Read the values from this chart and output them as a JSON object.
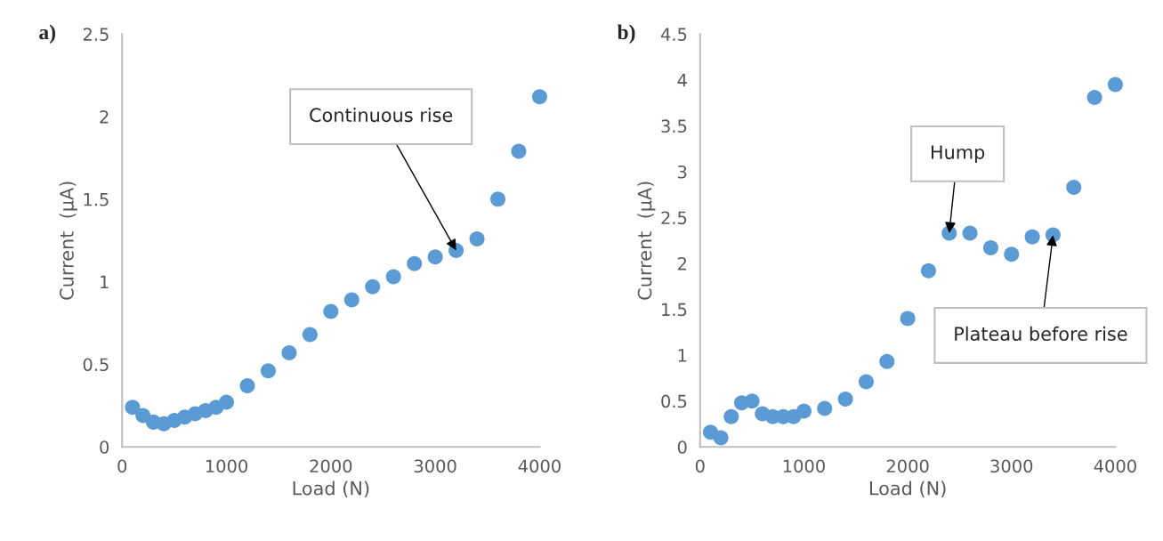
{
  "chart_data": [
    {
      "type": "scatter",
      "xlabel": "Load (N)",
      "ylabel": "Current  (µA)",
      "x": [
        100,
        200,
        300,
        400,
        500,
        600,
        700,
        800,
        900,
        1000,
        1200,
        1400,
        1600,
        1800,
        2000,
        2200,
        2400,
        2600,
        2800,
        3000,
        3200,
        3400,
        3600,
        3800,
        4000
      ],
      "series": [
        {
          "color": "#5b9bd5",
          "values": [
            0.24,
            0.19,
            0.15,
            0.14,
            0.16,
            0.18,
            0.2,
            0.22,
            0.24,
            0.27,
            0.37,
            0.46,
            0.57,
            0.68,
            0.82,
            0.89,
            0.97,
            1.03,
            1.11,
            1.15,
            1.19,
            1.26,
            1.5,
            1.79,
            2.12
          ]
        }
      ],
      "xlim": [
        0,
        4000
      ],
      "xticks": [
        0,
        1000,
        2000,
        3000,
        4000
      ],
      "ylim": [
        0,
        2.5
      ],
      "yticks": [
        0,
        0.5,
        1,
        1.5,
        2,
        2.5
      ],
      "marker": "circle",
      "grid": false,
      "legend": false,
      "annotations": [
        "a)",
        {
          "text": "Continuous rise",
          "x": 3200,
          "y": 1.19
        }
      ]
    },
    {
      "type": "scatter",
      "xlabel": "Load (N)",
      "ylabel": "Current  (µA)",
      "x": [
        100,
        200,
        300,
        400,
        500,
        600,
        700,
        800,
        900,
        1000,
        1200,
        1400,
        1600,
        1800,
        2000,
        2200,
        2400,
        2600,
        2800,
        3000,
        3200,
        3400,
        3600,
        3800,
        4000
      ],
      "series": [
        {
          "color": "#5b9bd5",
          "values": [
            0.16,
            0.1,
            0.33,
            0.48,
            0.5,
            0.36,
            0.33,
            0.33,
            0.33,
            0.39,
            0.42,
            0.52,
            0.71,
            0.93,
            1.4,
            1.92,
            2.33,
            2.33,
            2.17,
            2.1,
            2.29,
            2.31,
            2.83,
            3.81,
            3.95
          ]
        }
      ],
      "xlim": [
        0,
        4000
      ],
      "xticks": [
        0,
        1000,
        2000,
        3000,
        4000
      ],
      "ylim": [
        0,
        4.5
      ],
      "yticks": [
        0,
        0.5,
        1,
        1.5,
        2,
        2.5,
        3,
        3.5,
        4,
        4.5
      ],
      "marker": "circle",
      "grid": false,
      "legend": false,
      "annotations": [
        "b)",
        {
          "text": "Hump",
          "x": 2400,
          "y": 2.33
        },
        {
          "text": "Plateau before rise",
          "x": 3400,
          "y": 2.31
        }
      ]
    }
  ]
}
